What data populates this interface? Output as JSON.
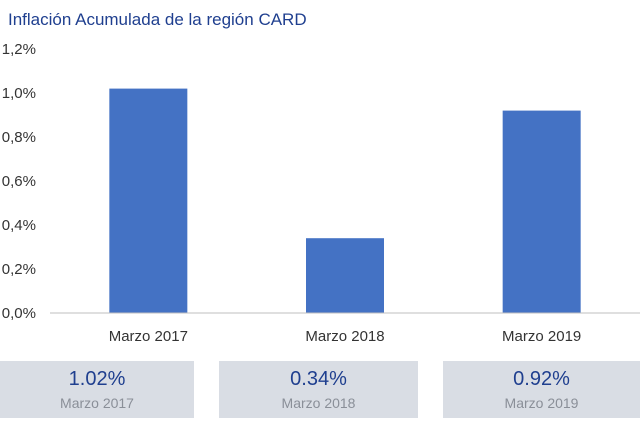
{
  "title": "Inflación Acumulada de la región CARD",
  "colors": {
    "bar": "#4472c4",
    "title": "#1f3f8f",
    "axis": "#bfbfbf",
    "card_bg": "#d9dde4"
  },
  "chart_data": {
    "type": "bar",
    "title": "Inflación Acumulada de la región CARD",
    "categories": [
      "Marzo 2017",
      "Marzo 2018",
      "Marzo 2019"
    ],
    "values": [
      1.02,
      0.34,
      0.92
    ],
    "ylim": [
      0,
      1.2
    ],
    "yticks": [
      0.0,
      0.2,
      0.4,
      0.6,
      0.8,
      1.0,
      1.2
    ],
    "ytick_labels": [
      "0,0%",
      "0,2%",
      "0,4%",
      "0,6%",
      "0,8%",
      "1,0%",
      "1,2%"
    ],
    "xlabel": "",
    "ylabel": "",
    "grid": false,
    "legend": "none"
  },
  "cards": [
    {
      "value": "1.02%",
      "label": "Marzo 2017"
    },
    {
      "value": "0.34%",
      "label": "Marzo 2018"
    },
    {
      "value": "0.92%",
      "label": "Marzo 2019"
    }
  ]
}
